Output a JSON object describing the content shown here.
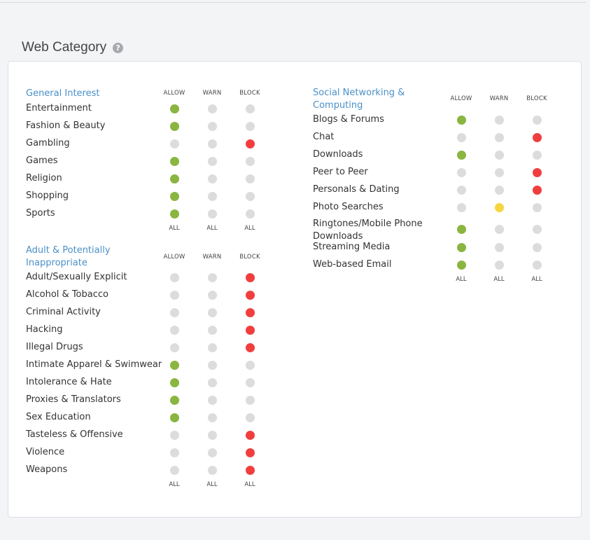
{
  "page": {
    "title": "Web Category",
    "help_icon": "question-circle-icon"
  },
  "columns": {
    "allow": "ALLOW",
    "warn": "WARN",
    "block": "BLOCK",
    "all": "ALL"
  },
  "colors": {
    "allow": "#8ab541",
    "warn": "#f5d642",
    "block": "#f03e3e",
    "off": "#dcdcdc",
    "title": "#4a90c8"
  },
  "groups": [
    {
      "title_lines": [
        "General Interest"
      ],
      "rows": [
        {
          "label": "Entertainment",
          "state": "allow"
        },
        {
          "label": "Fashion & Beauty",
          "state": "allow"
        },
        {
          "label": "Gambling",
          "state": "block"
        },
        {
          "label": "Games",
          "state": "allow"
        },
        {
          "label": "Religion",
          "state": "allow"
        },
        {
          "label": "Shopping",
          "state": "allow"
        },
        {
          "label": "Sports",
          "state": "allow"
        }
      ]
    },
    {
      "title_lines": [
        "Adult & Potentially",
        "Inappropriate"
      ],
      "rows": [
        {
          "label": "Adult/Sexually Explicit",
          "state": "block"
        },
        {
          "label": "Alcohol & Tobacco",
          "state": "block"
        },
        {
          "label": "Criminal Activity",
          "state": "block"
        },
        {
          "label": "Hacking",
          "state": "block"
        },
        {
          "label": "Illegal Drugs",
          "state": "block"
        },
        {
          "label": "Intimate Apparel & Swimwear",
          "state": "allow"
        },
        {
          "label": "Intolerance & Hate",
          "state": "allow"
        },
        {
          "label": "Proxies & Translators",
          "state": "allow"
        },
        {
          "label": "Sex Education",
          "state": "allow"
        },
        {
          "label": "Tasteless & Offensive",
          "state": "block"
        },
        {
          "label": "Violence",
          "state": "block"
        },
        {
          "label": "Weapons",
          "state": "block"
        }
      ]
    },
    {
      "title_lines": [
        "Social Networking &",
        "Computing"
      ],
      "rows": [
        {
          "label": "Blogs & Forums",
          "state": "allow"
        },
        {
          "label": "Chat",
          "state": "block"
        },
        {
          "label": "Downloads",
          "state": "allow"
        },
        {
          "label": "Peer to Peer",
          "state": "block"
        },
        {
          "label": "Personals & Dating",
          "state": "block"
        },
        {
          "label": "Photo Searches",
          "state": "warn"
        },
        {
          "label": "Ringtones/Mobile Phone Downloads",
          "label_lines": [
            "Ringtones/Mobile Phone",
            "Downloads"
          ],
          "state": "allow"
        },
        {
          "label": "Streaming Media",
          "state": "allow"
        },
        {
          "label": "Web-based Email",
          "state": "allow"
        }
      ]
    }
  ]
}
